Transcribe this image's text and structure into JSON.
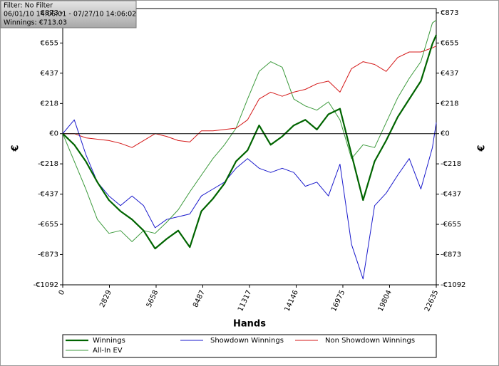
{
  "chart_data": {
    "type": "line",
    "info": [
      "Filter: No Filter",
      "06/01/10 14:06:01 - 07/27/10 14:06:02",
      "Winnings: €713.03"
    ],
    "x_label": "Hands",
    "y_label": "€",
    "y2_label": "€",
    "x": [
      0,
      700,
      1400,
      2100,
      2800,
      3500,
      4200,
      4900,
      5600,
      6300,
      7000,
      7700,
      8400,
      9100,
      9800,
      10500,
      11200,
      11900,
      12600,
      13300,
      14000,
      14700,
      15400,
      16100,
      16800,
      17500,
      18200,
      18900,
      19600,
      20300,
      21000,
      21700,
      22400,
      22635
    ],
    "series": [
      {
        "name": "Winnings",
        "color": "#006400",
        "width": 2.2,
        "values": [
          0,
          -80,
          -200,
          -350,
          -480,
          -560,
          -620,
          -700,
          -830,
          -760,
          -700,
          -820,
          -560,
          -470,
          -360,
          -200,
          -120,
          60,
          -80,
          -20,
          60,
          100,
          30,
          140,
          180,
          -150,
          -480,
          -200,
          -50,
          120,
          250,
          380,
          650,
          713.03
        ]
      },
      {
        "name": "Showdown Winnings",
        "color": "#1a1acc",
        "width": 1,
        "values": [
          0,
          100,
          -150,
          -350,
          -450,
          -520,
          -450,
          -520,
          -680,
          -620,
          -600,
          -580,
          -450,
          -400,
          -350,
          -250,
          -180,
          -250,
          -280,
          -250,
          -280,
          -380,
          -350,
          -450,
          -220,
          -800,
          -1050,
          -520,
          -430,
          -300,
          -180,
          -400,
          -100,
          80
        ]
      },
      {
        "name": "Non Showdown Winnings",
        "color": "#d41818",
        "width": 1,
        "values": [
          0,
          0,
          -30,
          -40,
          -50,
          -70,
          -100,
          -50,
          0,
          -20,
          -50,
          -60,
          20,
          20,
          30,
          40,
          100,
          250,
          300,
          270,
          300,
          320,
          360,
          380,
          300,
          470,
          520,
          500,
          450,
          550,
          590,
          590,
          620,
          633
        ]
      },
      {
        "name": "All-In EV",
        "color": "#3c9a3c",
        "width": 1,
        "values": [
          0,
          -200,
          -400,
          -620,
          -720,
          -700,
          -780,
          -700,
          -720,
          -640,
          -550,
          -420,
          -300,
          -180,
          -80,
          40,
          250,
          450,
          520,
          480,
          250,
          200,
          170,
          230,
          100,
          -180,
          -80,
          -100,
          80,
          260,
          400,
          520,
          800,
          820
        ]
      }
    ],
    "xlim": [
      0,
      22635
    ],
    "xticks": [
      0,
      2829,
      5658,
      8487,
      11317,
      14146,
      16975,
      19804,
      22635
    ],
    "ylim": [
      -1092,
      904
    ],
    "yticks": [
      {
        "value": 873,
        "label": "€873"
      },
      {
        "value": 655,
        "label": "€655"
      },
      {
        "value": 437,
        "label": "€437"
      },
      {
        "value": 218,
        "label": "€218"
      },
      {
        "value": 0,
        "label": "€0"
      },
      {
        "value": -218,
        "label": "-€218"
      },
      {
        "value": -437,
        "label": "-€437"
      },
      {
        "value": -655,
        "label": "-€655"
      },
      {
        "value": -873,
        "label": "-€873"
      },
      {
        "value": -1092,
        "label": "-€1092"
      }
    ],
    "zero_line": true,
    "legend": "bottom"
  }
}
